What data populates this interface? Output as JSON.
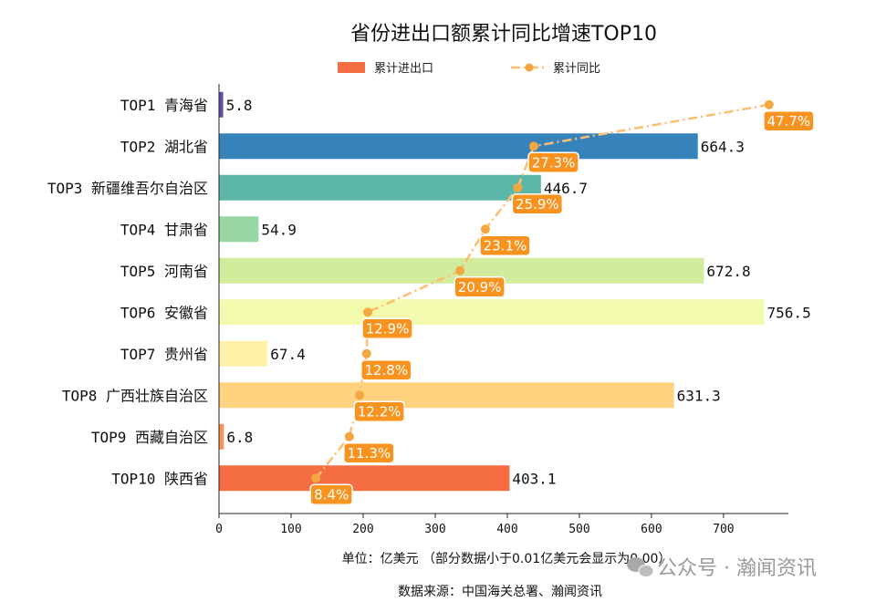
{
  "chart_data": {
    "type": "bar",
    "title": "省份进出口额累计同比增速TOP10",
    "categories": [
      "TOP1 青海省",
      "TOP2 湖北省",
      "TOP3 新疆维吾尔自治区",
      "TOP4 甘肃省",
      "TOP5 河南省",
      "TOP6 安徽省",
      "TOP7 贵州省",
      "TOP8 广西壮族自治区",
      "TOP9 西藏自治区",
      "TOP10 陕西省"
    ],
    "series": [
      {
        "name": "累计进出口",
        "type": "bar",
        "values": [
          5.8,
          664.3,
          446.7,
          54.9,
          672.8,
          756.5,
          67.4,
          631.3,
          6.8,
          403.1
        ],
        "value_labels": [
          "5.8",
          "664.3",
          "446.7",
          "54.9",
          "672.8",
          "756.5",
          "67.4",
          "631.3",
          "6.8",
          "403.1"
        ]
      },
      {
        "name": "累计同比",
        "type": "line",
        "values": [
          47.7,
          27.3,
          25.9,
          23.1,
          20.9,
          12.9,
          12.8,
          12.2,
          11.3,
          8.4
        ],
        "value_labels": [
          "47.7%",
          "27.3%",
          "25.9%",
          "23.1%",
          "20.9%",
          "12.9%",
          "12.8%",
          "12.2%",
          "11.3%",
          "8.4%"
        ]
      }
    ],
    "bar_colors": [
      "#5e4fa2",
      "#3682ba",
      "#5cb7a9",
      "#98d6a4",
      "#d0ec9c",
      "#f3faad",
      "#fff1a8",
      "#fed27f",
      "#f99254",
      "#f46d43"
    ],
    "line_color": "#fdbf6f",
    "label_box_color": "#f7931e",
    "xlim": [
      0,
      790
    ],
    "xticks": [
      0,
      100,
      200,
      300,
      400,
      500,
      600,
      700
    ],
    "xtick_labels": [
      "0",
      "100",
      "200",
      "300",
      "400",
      "500",
      "600",
      "700"
    ],
    "legend_position": "top-center",
    "grid": false
  },
  "notes": {
    "unit": "单位：亿美元  （部分数据小于0.01亿美元会显示为0.00）",
    "source": "数据来源：中国海关总署、瀚闻资讯"
  },
  "watermark": {
    "text": "公众号 · 瀚闻资讯",
    "icon": "wechat-icon"
  }
}
